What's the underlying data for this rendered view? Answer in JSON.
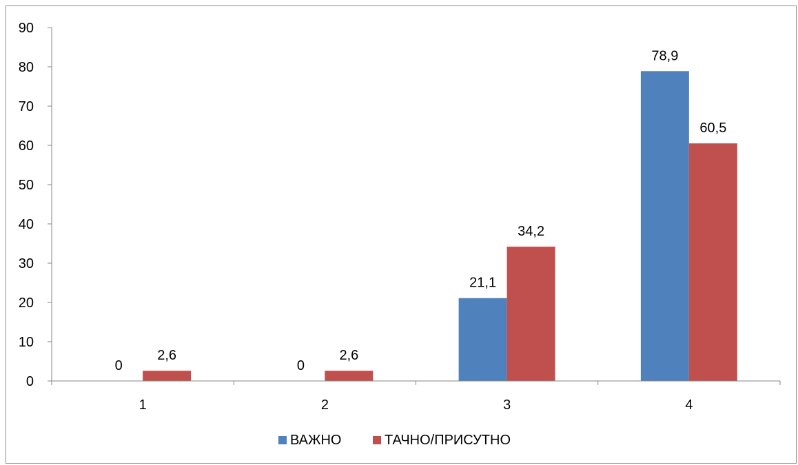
{
  "chart_data": {
    "type": "bar",
    "categories": [
      "1",
      "2",
      "3",
      "4"
    ],
    "series": [
      {
        "name": "ВАЖНО",
        "values": [
          0,
          0,
          21.1,
          78.9
        ],
        "labels": [
          "0",
          "0",
          "21,1",
          "78,9"
        ],
        "color": "#4f81bd"
      },
      {
        "name": "ТАЧНО/ПРИСУТНО",
        "values": [
          2.6,
          2.6,
          34.2,
          60.5
        ],
        "labels": [
          "2,6",
          "2,6",
          "34,2",
          "60,5"
        ],
        "color": "#c0504d"
      }
    ],
    "title": "",
    "xlabel": "",
    "ylabel": "",
    "ylim": [
      0,
      90
    ],
    "yticks": [
      0,
      10,
      20,
      30,
      40,
      50,
      60,
      70,
      80,
      90
    ],
    "grid": false,
    "legend_position": "bottom",
    "axis_color": "#868686"
  }
}
